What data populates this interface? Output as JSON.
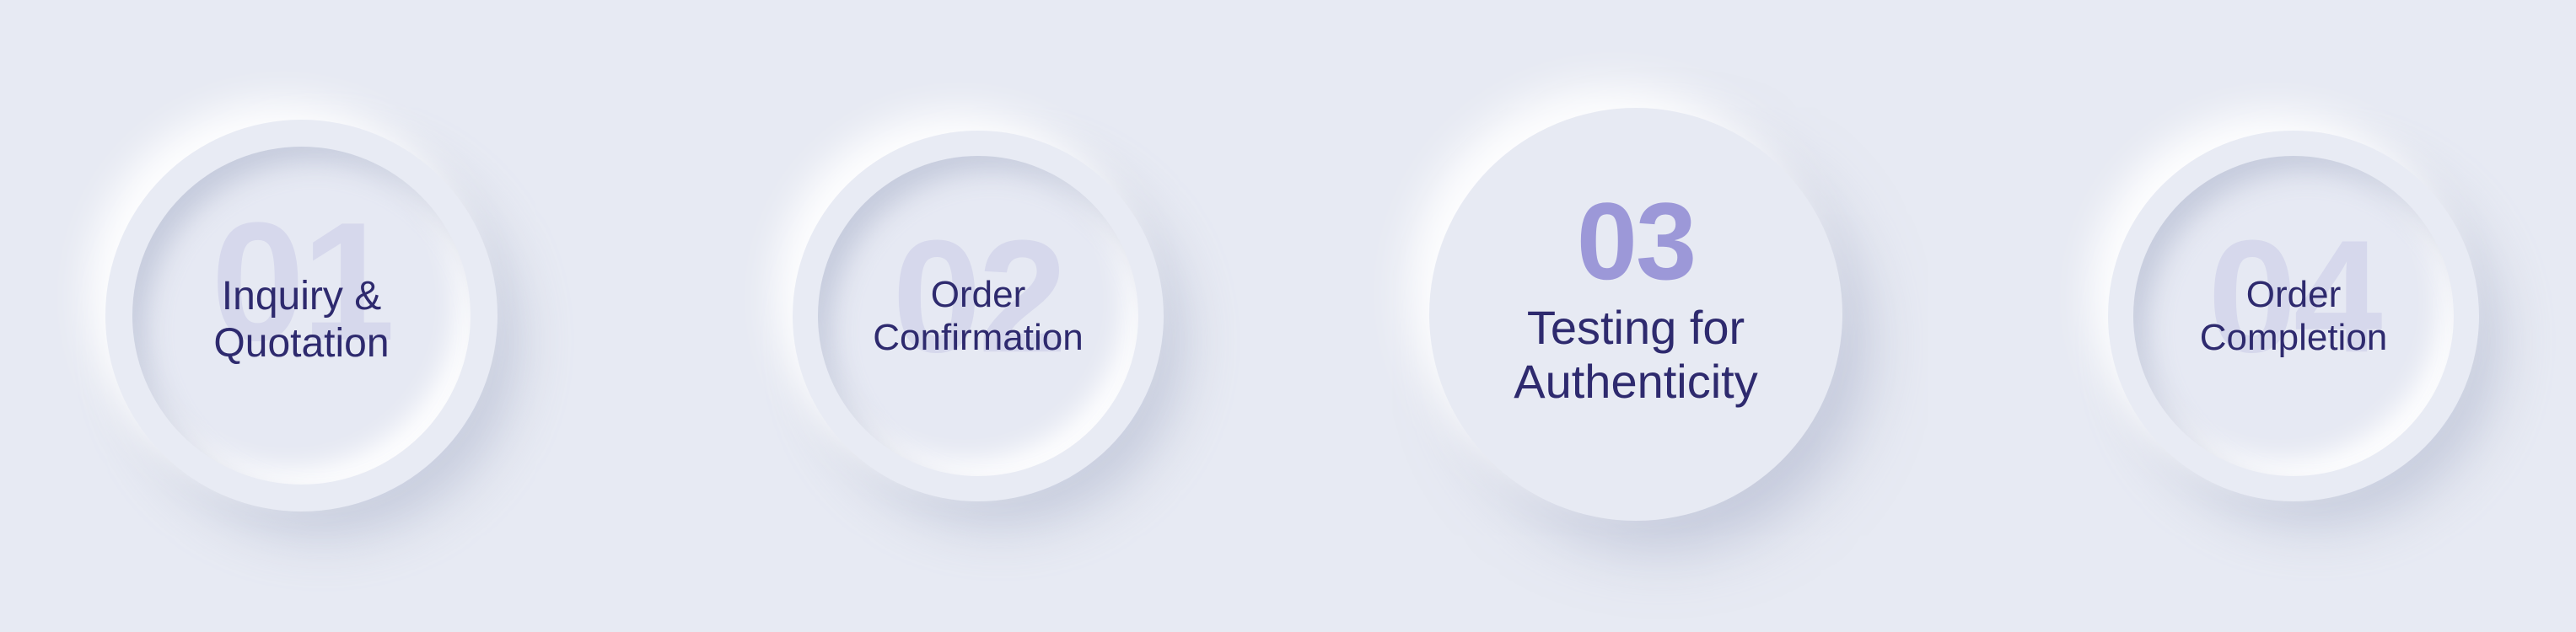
{
  "steps": [
    {
      "number": "01",
      "line1": "Inquiry &",
      "line2": "Quotation",
      "active": false
    },
    {
      "number": "02",
      "line1": "Order",
      "line2": "Confirmation",
      "active": false
    },
    {
      "number": "03",
      "line1": "Testing for",
      "line2": "Authenticity",
      "active": true
    },
    {
      "number": "04",
      "line1": "Order",
      "line2": "Completion",
      "active": false
    }
  ],
  "colors": {
    "background": "#e7eaf3",
    "label_text": "#2e2a6e",
    "ghost_number": "#d6d8ec",
    "active_number": "#9c98d8"
  }
}
